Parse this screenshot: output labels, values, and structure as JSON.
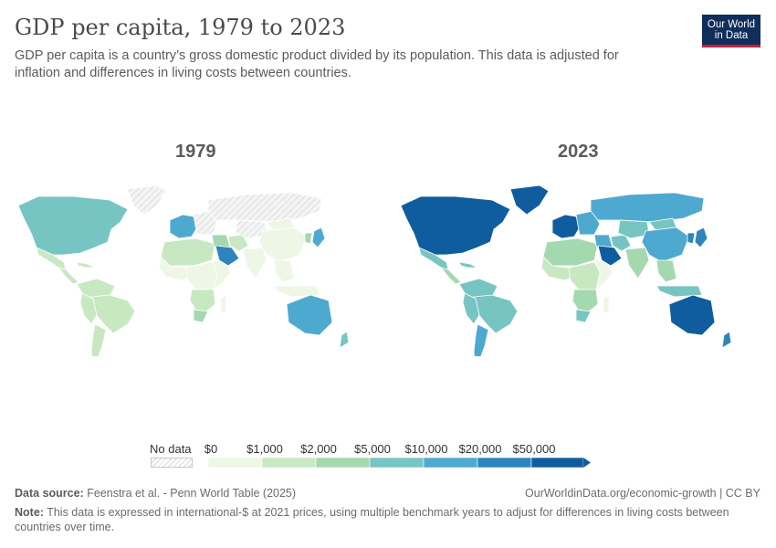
{
  "header": {
    "title": "GDP per capita, 1979 to 2023",
    "subtitle": "GDP per capita is a country’s gross domestic product divided by its population. This data is adjusted for inflation and differences in living costs between countries."
  },
  "logo": {
    "line1": "Our World",
    "line2": "in Data"
  },
  "maps": [
    {
      "year": "1979"
    },
    {
      "year": "2023"
    }
  ],
  "legend": {
    "no_data_label": "No data",
    "ticks": [
      "$0",
      "$1,000",
      "$2,000",
      "$5,000",
      "$10,000",
      "$20,000",
      "$50,000"
    ],
    "colors": [
      "#eef7e6",
      "#c8e8c2",
      "#a4d9b0",
      "#77c5c2",
      "#4ea9d1",
      "#2e85bd",
      "#0f5d9e"
    ],
    "no_data_color": "#d8d8d8"
  },
  "map_values": {
    "1979": {
      "north_america": 3,
      "mexico": 1,
      "central_america": 1,
      "caribbean": 1,
      "south_america_north": 1,
      "brazil": 1,
      "south_america_south": 1,
      "argentina": 1,
      "greenland": -1,
      "western_europe": 4,
      "eastern_europe": -1,
      "ussr": -1,
      "north_africa": 1,
      "west_africa": 0,
      "central_africa": 0,
      "east_africa": 0,
      "southern_africa": 1,
      "south_africa": 2,
      "madagascar": 0,
      "middle_east": 2,
      "saudi_arabia": 5,
      "iran": 1,
      "central_asia": -1,
      "india": 0,
      "china": 0,
      "mongolia": 0,
      "southeast_asia": 0,
      "indonesia": 0,
      "japan": 4,
      "korea": 2,
      "australia": 4,
      "new_zealand": 3
    },
    "2023": {
      "north_america": 6,
      "mexico": 3,
      "central_america": 2,
      "caribbean": 3,
      "south_america_north": 3,
      "brazil": 3,
      "south_america_south": 3,
      "argentina": 4,
      "greenland": 6,
      "western_europe": 6,
      "eastern_europe": 4,
      "ussr": 4,
      "north_africa": 2,
      "west_africa": 1,
      "central_africa": 1,
      "east_africa": 0,
      "southern_africa": 2,
      "south_africa": 3,
      "madagascar": 0,
      "middle_east": 4,
      "saudi_arabia": 6,
      "iran": 3,
      "central_asia": 3,
      "india": 2,
      "china": 4,
      "mongolia": 3,
      "southeast_asia": 2,
      "indonesia": 3,
      "japan": 5,
      "korea": 5,
      "australia": 6,
      "new_zealand": 5
    }
  },
  "footer": {
    "source_label": "Data source:",
    "source_text": "Feenstra et al. - Penn World Table (2025)",
    "right_text": "OurWorldinData.org/economic-growth | CC BY",
    "note_label": "Note:",
    "note_text": "This data is expressed in international-$ at 2021 prices, using multiple benchmark years to adjust for differences in living costs between countries over time."
  }
}
